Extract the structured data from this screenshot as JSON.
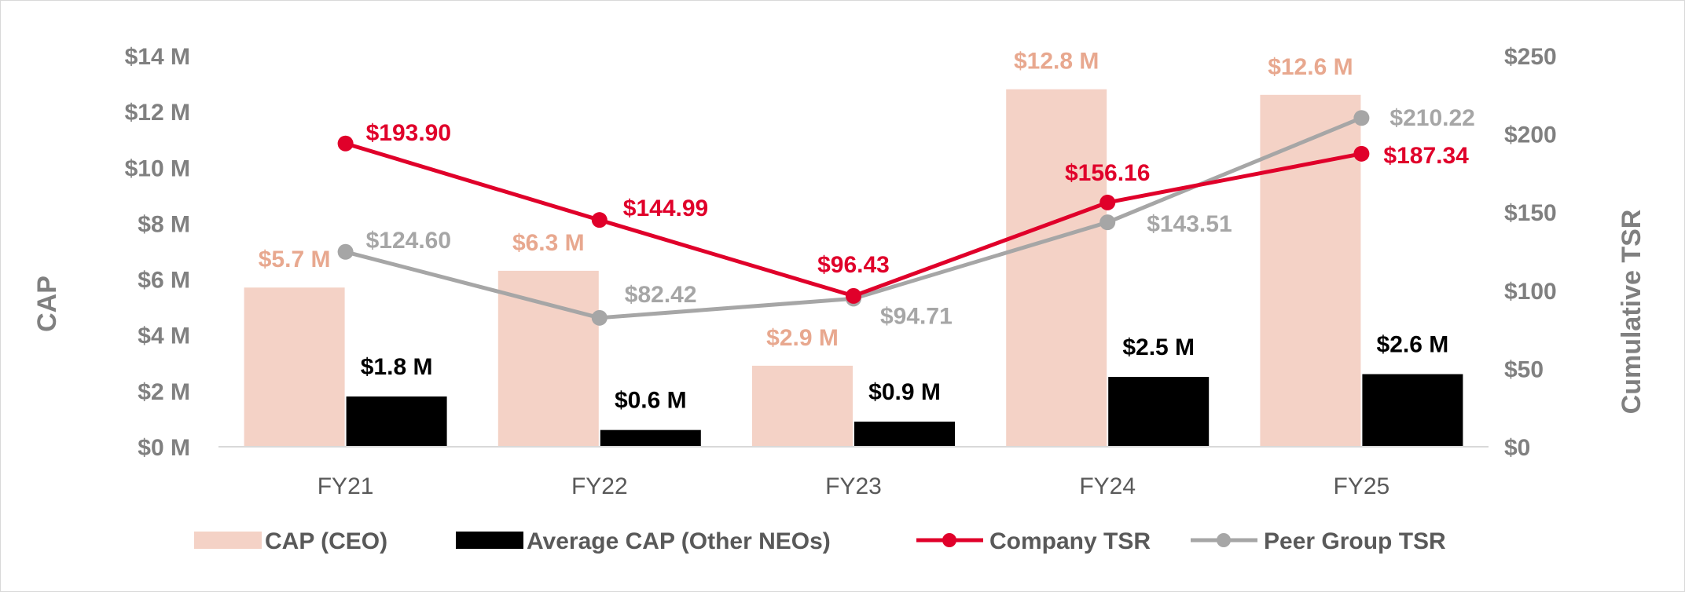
{
  "chart_data": {
    "type": "bar",
    "categories": [
      "FY21",
      "FY22",
      "FY23",
      "FY24",
      "FY25"
    ],
    "y_left": {
      "title": "CAP",
      "ylim": [
        0,
        14
      ],
      "ticks": [
        0,
        2,
        4,
        6,
        8,
        10,
        12,
        14
      ],
      "tick_labels": [
        "$0 M",
        "$2 M",
        "$4 M",
        "$6 M",
        "$8 M",
        "$10 M",
        "$12 M",
        "$14 M"
      ]
    },
    "y_right": {
      "title": "Cumulative TSR",
      "ylim": [
        0,
        250
      ],
      "ticks": [
        0,
        50,
        100,
        150,
        200,
        250
      ],
      "tick_labels": [
        "$0",
        "$50",
        "$100",
        "$150",
        "$200",
        "$250"
      ]
    },
    "series": [
      {
        "name": "CAP (CEO)",
        "kind": "bar",
        "axis": "left",
        "color": "#f4d2c6",
        "label_color": "#e8a88f",
        "values": [
          5.7,
          6.3,
          2.9,
          12.8,
          12.6
        ],
        "labels": [
          "$5.7 M",
          "$6.3 M",
          "$2.9 M",
          "$12.8 M",
          "$12.6 M"
        ]
      },
      {
        "name": "Average CAP (Other NEOs)",
        "kind": "bar",
        "axis": "left",
        "color": "#000000",
        "label_color": "#000000",
        "values": [
          1.8,
          0.6,
          0.9,
          2.5,
          2.6
        ],
        "labels": [
          "$1.8 M",
          "$0.6 M",
          "$0.9 M",
          "$2.5 M",
          "$2.6 M"
        ]
      },
      {
        "name": "Company TSR",
        "kind": "line",
        "axis": "right",
        "color": "#e0002a",
        "label_color": "#e0002a",
        "values": [
          193.9,
          144.99,
          96.43,
          156.16,
          187.34
        ],
        "labels": [
          "$193.90",
          "$144.99",
          "$96.43",
          "$156.16",
          "$187.34"
        ]
      },
      {
        "name": "Peer Group TSR",
        "kind": "line",
        "axis": "right",
        "color": "#a6a6a6",
        "label_color": "#a6a6a6",
        "values": [
          124.6,
          82.42,
          94.71,
          143.51,
          210.22
        ],
        "labels": [
          "$124.60",
          "$82.42",
          "$94.71",
          "$143.51",
          "$210.22"
        ]
      }
    ],
    "grid": false,
    "legend": "bottom"
  }
}
